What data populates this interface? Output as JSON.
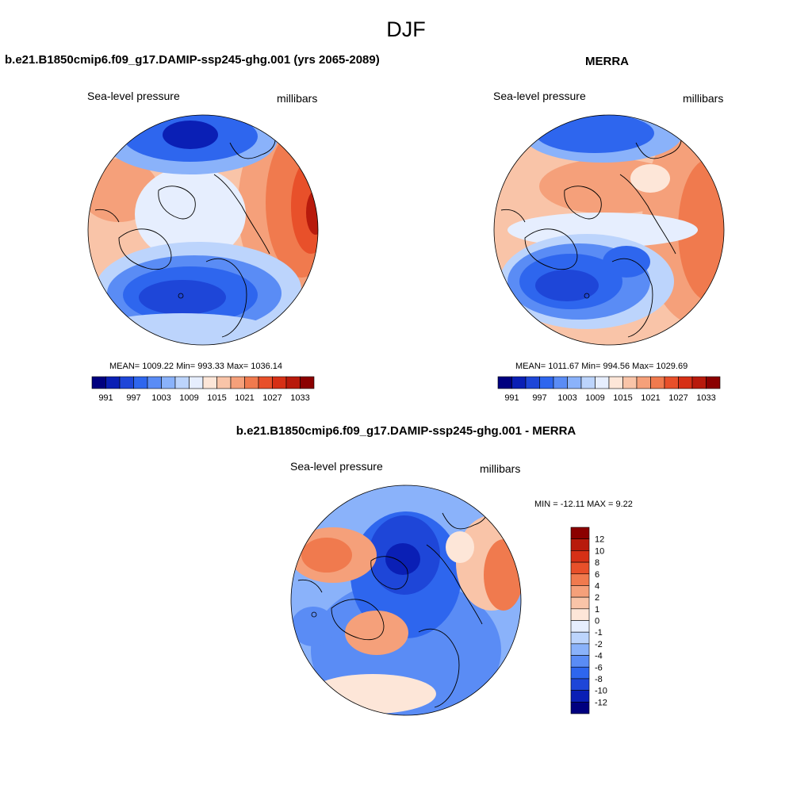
{
  "page": {
    "season": "DJF"
  },
  "panels": [
    {
      "title": "b.e21.B1850cmip6.f09_g17.DAMIP-ssp245-ghg.001 (yrs 2065-2089)",
      "left_label": "Sea-level pressure",
      "right_label": "millibars",
      "stats": "MEAN= 1009.22  Min= 993.33  Max= 1036.14",
      "colorbar_ticks": [
        "991",
        "997",
        "1003",
        "1009",
        "1015",
        "1021",
        "1027",
        "1033"
      ]
    },
    {
      "title": "MERRA",
      "left_label": "Sea-level pressure",
      "right_label": "millibars",
      "stats": "MEAN= 1011.67  Min= 994.56  Max= 1029.69",
      "colorbar_ticks": [
        "991",
        "997",
        "1003",
        "1009",
        "1015",
        "1021",
        "1027",
        "1033"
      ]
    },
    {
      "title": "b.e21.B1850cmip6.f09_g17.DAMIP-ssp245-ghg.001 - MERRA",
      "left_label": "Sea-level pressure",
      "right_label": "millibars",
      "stats": "MIN = -12.11 MAX =   9.22",
      "colorbar_ticks": [
        "12",
        "10",
        "8",
        "6",
        "4",
        "2",
        "1",
        "0",
        "-1",
        "-2",
        "-4",
        "-6",
        "-8",
        "-10",
        "-12"
      ]
    }
  ],
  "colors": {
    "abs_scale": [
      "#00007f",
      "#0a1fb5",
      "#1e46d8",
      "#2e66ee",
      "#5a8cf5",
      "#8ab2fa",
      "#bcd4fc",
      "#e6eefe",
      "#fde6d8",
      "#f9c4a8",
      "#f5a07a",
      "#f07a4e",
      "#e8502a",
      "#d63016",
      "#b81a0c",
      "#8b0000"
    ],
    "diff_scale": [
      "#8b0000",
      "#b81a0c",
      "#d63016",
      "#e8502a",
      "#f07a4e",
      "#f5a07a",
      "#f9c4a8",
      "#fde6d8",
      "#e6eefe",
      "#bcd4fc",
      "#8ab2fa",
      "#5a8cf5",
      "#2e66ee",
      "#1e46d8",
      "#0a1fb5",
      "#00007f"
    ]
  }
}
